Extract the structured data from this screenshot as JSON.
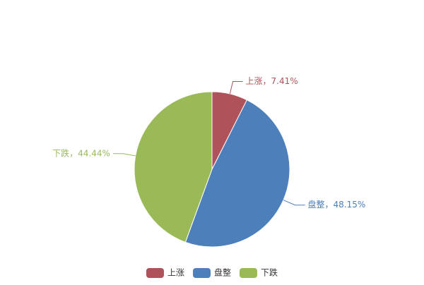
{
  "chart_data": {
    "type": "pie",
    "categories": [
      "上涨",
      "盘整",
      "下跌"
    ],
    "values": [
      7.41,
      48.15,
      44.44
    ],
    "value_labels": [
      "上涨，7.41%",
      "盘整，48.15%",
      "下跌，44.44%"
    ],
    "colors": [
      "#b0525a",
      "#4d7fbb",
      "#9aba58"
    ],
    "legend": "bottom"
  }
}
